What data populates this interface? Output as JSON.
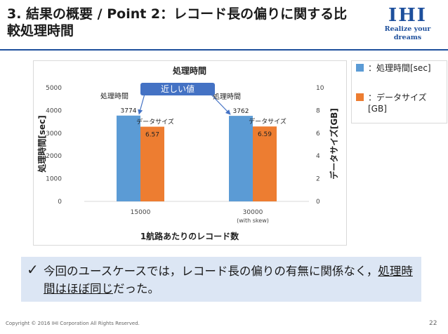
{
  "slide": {
    "title": "3. 結果の概要 / Point 2：レコード長の偏りに関する比較処理時間",
    "logo_mark": "IHI",
    "logo_tagline": "Realize your dreams",
    "callout_check": "✓",
    "callout_text_part1": "今回のユースケースでは，レコード長の偏りの有無に関係なく，",
    "callout_text_underlined": "処理時間はほぼ同じ",
    "callout_text_part2": "だった。",
    "copyright": "Copyright © 2016 IHI Corporation All Rights Reserved.",
    "page_number": "22"
  },
  "legend": {
    "item1": "：処理時間[sec]",
    "item2": "：データサイズ[GB]"
  },
  "colors": {
    "time_bar": "#5b9bd5",
    "size_bar": "#ed7d31",
    "brand": "#1d4f9c",
    "callout_bg": "#dce6f4",
    "annotation_box": "#4472c4"
  },
  "chart_data": {
    "type": "bar",
    "title": "処理時間",
    "xlabel": "1航路あたりのレコード数",
    "ylabel": "処理時間[sec]",
    "y2label": "データサイズ[GB]",
    "categories": [
      "15000",
      "30000"
    ],
    "category_sublabels": [
      "",
      "(with skew)"
    ],
    "ylim": [
      0,
      5000
    ],
    "y_ticks": [
      0,
      1000,
      2000,
      3000,
      4000,
      5000
    ],
    "y2lim": [
      0,
      10
    ],
    "y2_ticks": [
      0,
      2,
      4,
      6,
      8,
      10
    ],
    "series": [
      {
        "name": "処理時間[sec]",
        "axis": "left",
        "values": [
          3774,
          3762
        ],
        "value_labels": [
          "3774",
          "3762"
        ]
      },
      {
        "name": "データサイズ[GB]",
        "axis": "right",
        "values": [
          6.57,
          6.59
        ],
        "value_labels": [
          "6.57",
          "6.59"
        ]
      }
    ],
    "bar_annotations": {
      "time": "処理時間",
      "size": "データサイズ"
    },
    "highlight_label": "近しい値",
    "grid": false,
    "legend_position": "right"
  }
}
